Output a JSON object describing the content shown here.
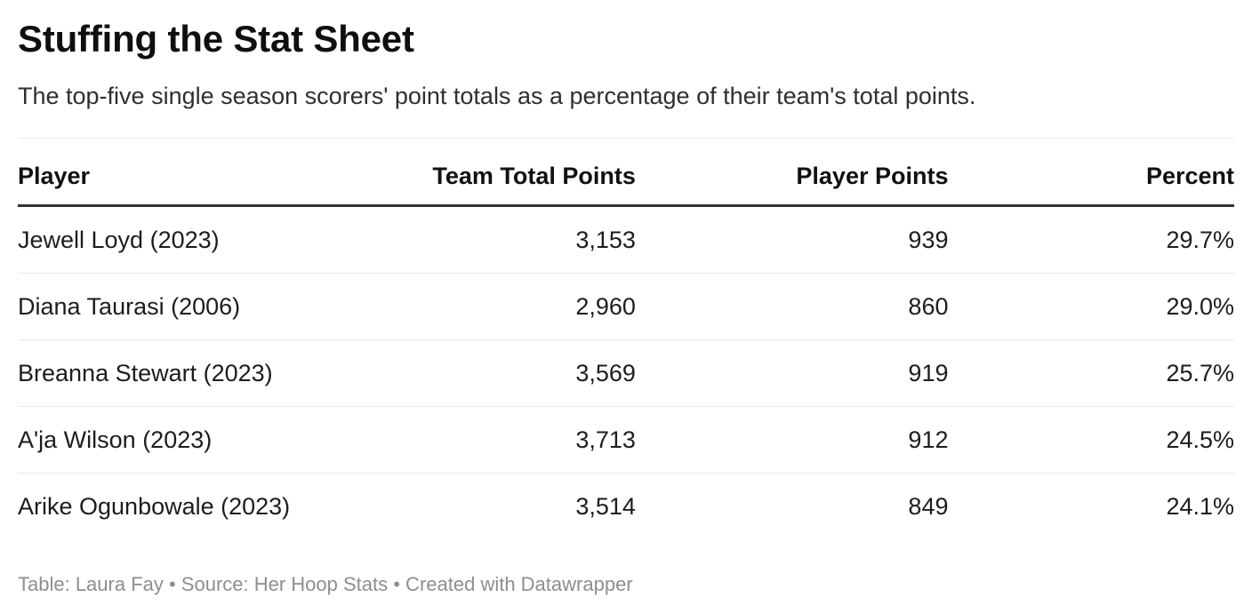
{
  "chart_data": {
    "type": "table",
    "title": "Stuffing the Stat Sheet",
    "description": "The top-five single season scorers' point totals as a percentage of their team's total points.",
    "columns": [
      {
        "label": "Player",
        "align": "left"
      },
      {
        "label": "Team Total Points",
        "align": "right"
      },
      {
        "label": "Player Points",
        "align": "right"
      },
      {
        "label": "Percent",
        "align": "right"
      }
    ],
    "rows": [
      [
        "Jewell Loyd (2023)",
        "3,153",
        "939",
        "29.7%"
      ],
      [
        "Diana Taurasi (2006)",
        "2,960",
        "860",
        "29.0%"
      ],
      [
        "Breanna Stewart (2023)",
        "3,569",
        "919",
        "25.7%"
      ],
      [
        "A'ja Wilson (2023)",
        "3,713",
        "912",
        "24.5%"
      ],
      [
        "Arike Ogunbowale (2023)",
        "3,514",
        "849",
        "24.1%"
      ]
    ],
    "footer": "Table: Laura Fay • Source: Her Hoop Stats • Created with Datawrapper"
  },
  "colors": {
    "background": "#ffffff",
    "title": "#0f0f0f",
    "description": "#2f2f2f",
    "header_text": "#111111",
    "header_rule": "#333333",
    "table_top_rule": "#efefef",
    "row_divider": "#e8e8e8",
    "body_text": "#1d1d1d",
    "footer_text": "#8e8e8e"
  }
}
